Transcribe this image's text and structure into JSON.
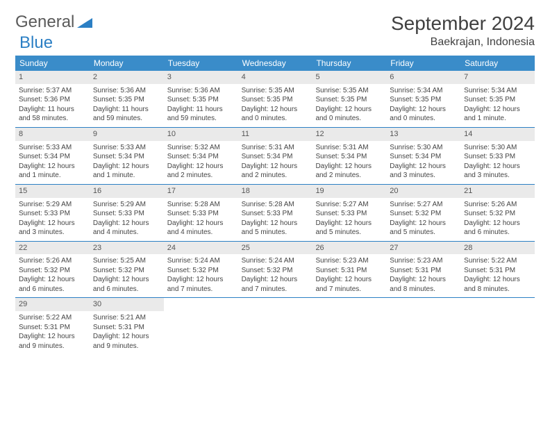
{
  "brand": {
    "part1": "General",
    "part2": "Blue"
  },
  "title": "September 2024",
  "location": "Baekrajan, Indonesia",
  "colors": {
    "header_bg": "#3a8cc9",
    "header_text": "#ffffff",
    "date_bg": "#eaeaea",
    "rule": "#2b7fc4",
    "brand_blue": "#2b7fc4",
    "text": "#404040"
  },
  "day_names": [
    "Sunday",
    "Monday",
    "Tuesday",
    "Wednesday",
    "Thursday",
    "Friday",
    "Saturday"
  ],
  "weeks": [
    [
      {
        "n": "1",
        "sr": "Sunrise: 5:37 AM",
        "ss": "Sunset: 5:36 PM",
        "dl": "Daylight: 11 hours and 58 minutes."
      },
      {
        "n": "2",
        "sr": "Sunrise: 5:36 AM",
        "ss": "Sunset: 5:35 PM",
        "dl": "Daylight: 11 hours and 59 minutes."
      },
      {
        "n": "3",
        "sr": "Sunrise: 5:36 AM",
        "ss": "Sunset: 5:35 PM",
        "dl": "Daylight: 11 hours and 59 minutes."
      },
      {
        "n": "4",
        "sr": "Sunrise: 5:35 AM",
        "ss": "Sunset: 5:35 PM",
        "dl": "Daylight: 12 hours and 0 minutes."
      },
      {
        "n": "5",
        "sr": "Sunrise: 5:35 AM",
        "ss": "Sunset: 5:35 PM",
        "dl": "Daylight: 12 hours and 0 minutes."
      },
      {
        "n": "6",
        "sr": "Sunrise: 5:34 AM",
        "ss": "Sunset: 5:35 PM",
        "dl": "Daylight: 12 hours and 0 minutes."
      },
      {
        "n": "7",
        "sr": "Sunrise: 5:34 AM",
        "ss": "Sunset: 5:35 PM",
        "dl": "Daylight: 12 hours and 1 minute."
      }
    ],
    [
      {
        "n": "8",
        "sr": "Sunrise: 5:33 AM",
        "ss": "Sunset: 5:34 PM",
        "dl": "Daylight: 12 hours and 1 minute."
      },
      {
        "n": "9",
        "sr": "Sunrise: 5:33 AM",
        "ss": "Sunset: 5:34 PM",
        "dl": "Daylight: 12 hours and 1 minute."
      },
      {
        "n": "10",
        "sr": "Sunrise: 5:32 AM",
        "ss": "Sunset: 5:34 PM",
        "dl": "Daylight: 12 hours and 2 minutes."
      },
      {
        "n": "11",
        "sr": "Sunrise: 5:31 AM",
        "ss": "Sunset: 5:34 PM",
        "dl": "Daylight: 12 hours and 2 minutes."
      },
      {
        "n": "12",
        "sr": "Sunrise: 5:31 AM",
        "ss": "Sunset: 5:34 PM",
        "dl": "Daylight: 12 hours and 2 minutes."
      },
      {
        "n": "13",
        "sr": "Sunrise: 5:30 AM",
        "ss": "Sunset: 5:34 PM",
        "dl": "Daylight: 12 hours and 3 minutes."
      },
      {
        "n": "14",
        "sr": "Sunrise: 5:30 AM",
        "ss": "Sunset: 5:33 PM",
        "dl": "Daylight: 12 hours and 3 minutes."
      }
    ],
    [
      {
        "n": "15",
        "sr": "Sunrise: 5:29 AM",
        "ss": "Sunset: 5:33 PM",
        "dl": "Daylight: 12 hours and 3 minutes."
      },
      {
        "n": "16",
        "sr": "Sunrise: 5:29 AM",
        "ss": "Sunset: 5:33 PM",
        "dl": "Daylight: 12 hours and 4 minutes."
      },
      {
        "n": "17",
        "sr": "Sunrise: 5:28 AM",
        "ss": "Sunset: 5:33 PM",
        "dl": "Daylight: 12 hours and 4 minutes."
      },
      {
        "n": "18",
        "sr": "Sunrise: 5:28 AM",
        "ss": "Sunset: 5:33 PM",
        "dl": "Daylight: 12 hours and 5 minutes."
      },
      {
        "n": "19",
        "sr": "Sunrise: 5:27 AM",
        "ss": "Sunset: 5:33 PM",
        "dl": "Daylight: 12 hours and 5 minutes."
      },
      {
        "n": "20",
        "sr": "Sunrise: 5:27 AM",
        "ss": "Sunset: 5:32 PM",
        "dl": "Daylight: 12 hours and 5 minutes."
      },
      {
        "n": "21",
        "sr": "Sunrise: 5:26 AM",
        "ss": "Sunset: 5:32 PM",
        "dl": "Daylight: 12 hours and 6 minutes."
      }
    ],
    [
      {
        "n": "22",
        "sr": "Sunrise: 5:26 AM",
        "ss": "Sunset: 5:32 PM",
        "dl": "Daylight: 12 hours and 6 minutes."
      },
      {
        "n": "23",
        "sr": "Sunrise: 5:25 AM",
        "ss": "Sunset: 5:32 PM",
        "dl": "Daylight: 12 hours and 6 minutes."
      },
      {
        "n": "24",
        "sr": "Sunrise: 5:24 AM",
        "ss": "Sunset: 5:32 PM",
        "dl": "Daylight: 12 hours and 7 minutes."
      },
      {
        "n": "25",
        "sr": "Sunrise: 5:24 AM",
        "ss": "Sunset: 5:32 PM",
        "dl": "Daylight: 12 hours and 7 minutes."
      },
      {
        "n": "26",
        "sr": "Sunrise: 5:23 AM",
        "ss": "Sunset: 5:31 PM",
        "dl": "Daylight: 12 hours and 7 minutes."
      },
      {
        "n": "27",
        "sr": "Sunrise: 5:23 AM",
        "ss": "Sunset: 5:31 PM",
        "dl": "Daylight: 12 hours and 8 minutes."
      },
      {
        "n": "28",
        "sr": "Sunrise: 5:22 AM",
        "ss": "Sunset: 5:31 PM",
        "dl": "Daylight: 12 hours and 8 minutes."
      }
    ],
    [
      {
        "n": "29",
        "sr": "Sunrise: 5:22 AM",
        "ss": "Sunset: 5:31 PM",
        "dl": "Daylight: 12 hours and 9 minutes."
      },
      {
        "n": "30",
        "sr": "Sunrise: 5:21 AM",
        "ss": "Sunset: 5:31 PM",
        "dl": "Daylight: 12 hours and 9 minutes."
      },
      null,
      null,
      null,
      null,
      null
    ]
  ]
}
